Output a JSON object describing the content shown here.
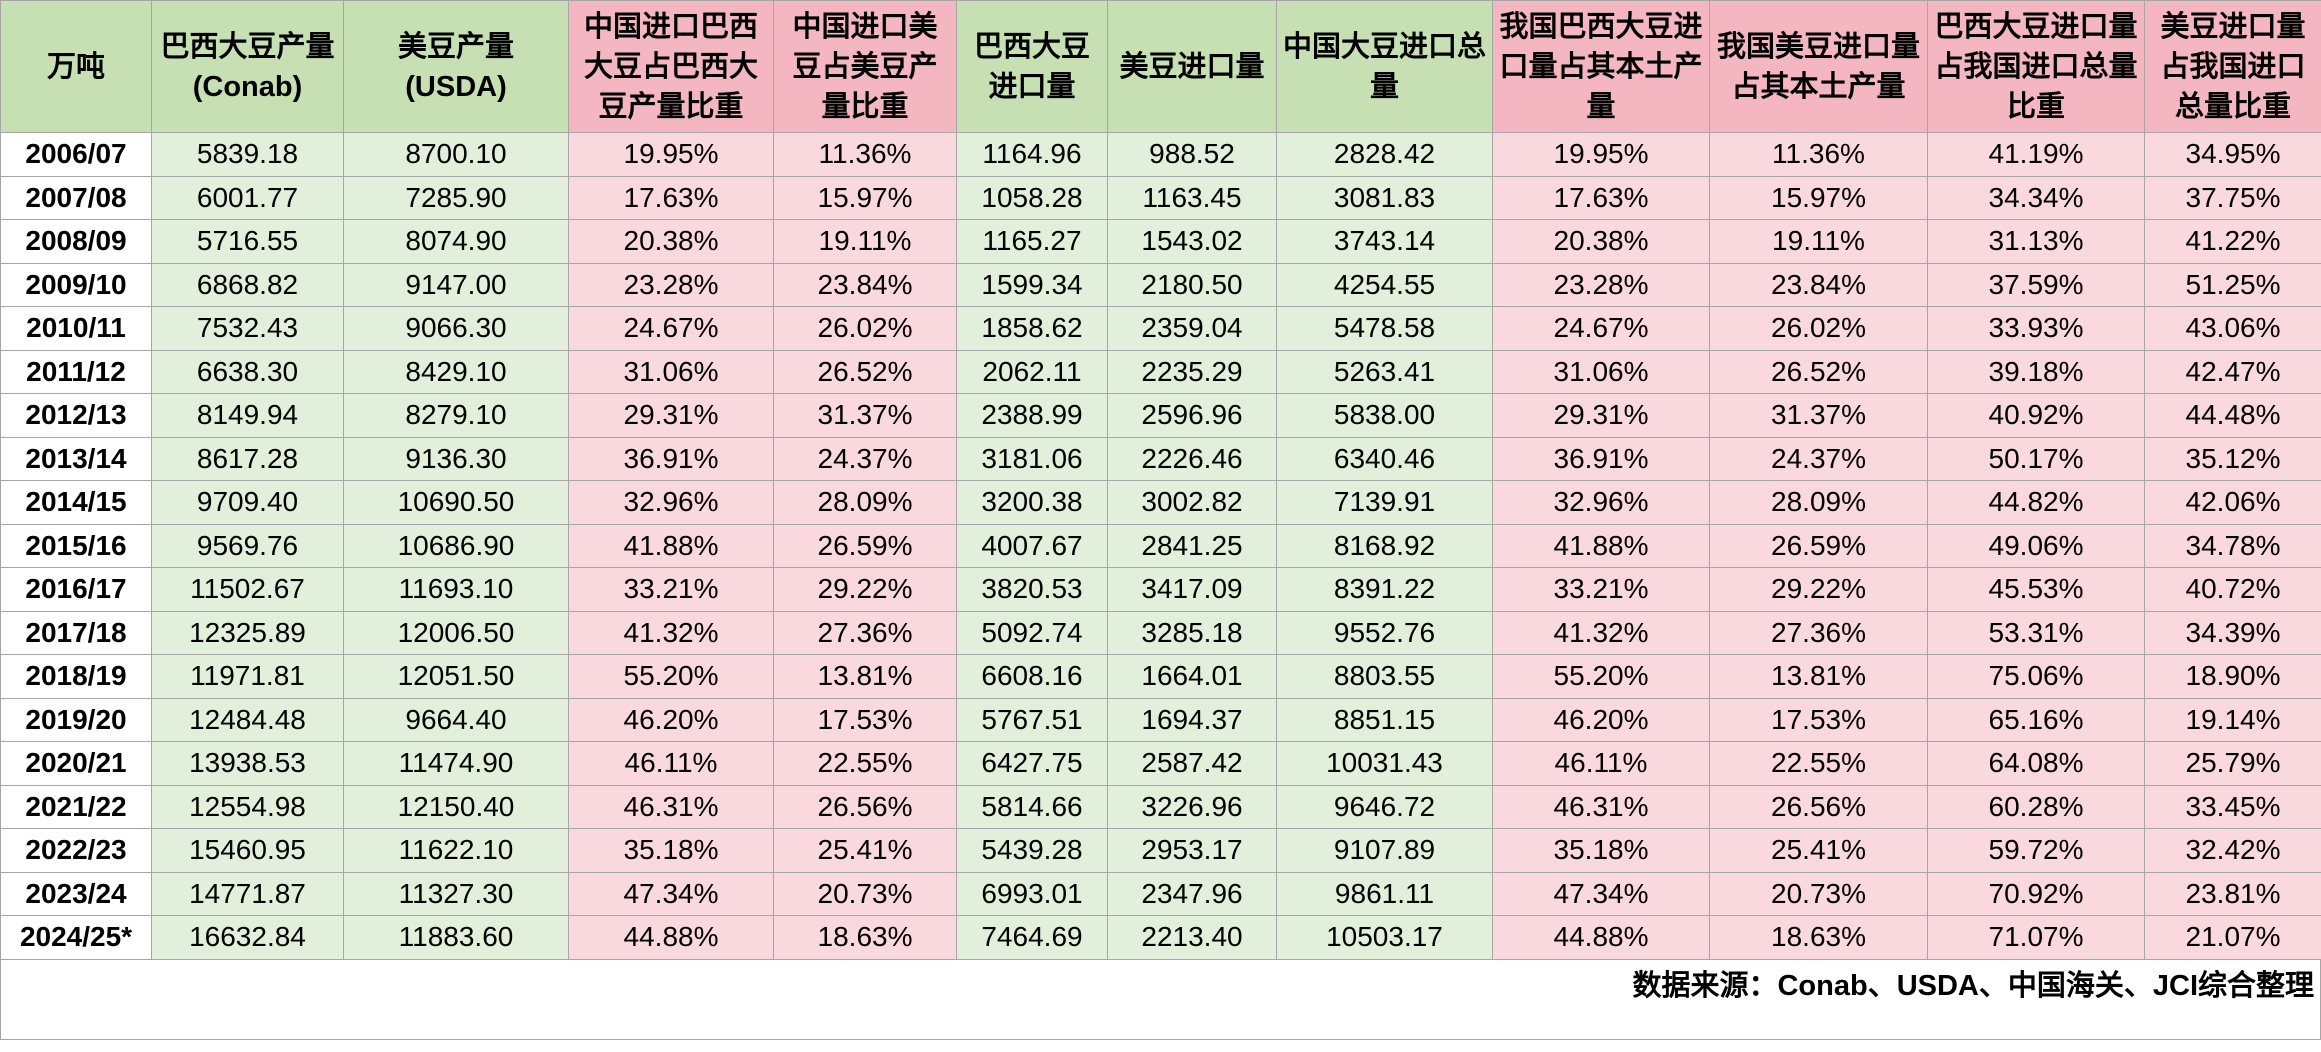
{
  "colors": {
    "header_green": "#c6e0b4",
    "header_pink": "#f4b6c0",
    "cell_green": "#e2efda",
    "cell_pink": "#fad9de"
  },
  "table": {
    "columns": [
      {
        "label": "万吨",
        "tone": "g"
      },
      {
        "label": "巴西大豆产量(Conab)",
        "tone": "g"
      },
      {
        "label": "美豆产量(USDA)",
        "tone": "g"
      },
      {
        "label": "中国进口巴西大豆占巴西大豆产量比重",
        "tone": "p"
      },
      {
        "label": "中国进口美豆占美豆产量比重",
        "tone": "p"
      },
      {
        "label": "巴西大豆进口量",
        "tone": "g"
      },
      {
        "label": "美豆进口量",
        "tone": "g"
      },
      {
        "label": "中国大豆进口总量",
        "tone": "g"
      },
      {
        "label": "我国巴西大豆进口量占其本土产量",
        "tone": "p"
      },
      {
        "label": "我国美豆进口量占其本土产量",
        "tone": "p"
      },
      {
        "label": "巴西大豆进口量占我国进口总量比重",
        "tone": "p"
      },
      {
        "label": "美豆进口量占我国进口总量比重",
        "tone": "p"
      }
    ],
    "rows": [
      [
        "2006/07",
        "5839.18",
        "8700.10",
        "19.95%",
        "11.36%",
        "1164.96",
        "988.52",
        "2828.42",
        "19.95%",
        "11.36%",
        "41.19%",
        "34.95%"
      ],
      [
        "2007/08",
        "6001.77",
        "7285.90",
        "17.63%",
        "15.97%",
        "1058.28",
        "1163.45",
        "3081.83",
        "17.63%",
        "15.97%",
        "34.34%",
        "37.75%"
      ],
      [
        "2008/09",
        "5716.55",
        "8074.90",
        "20.38%",
        "19.11%",
        "1165.27",
        "1543.02",
        "3743.14",
        "20.38%",
        "19.11%",
        "31.13%",
        "41.22%"
      ],
      [
        "2009/10",
        "6868.82",
        "9147.00",
        "23.28%",
        "23.84%",
        "1599.34",
        "2180.50",
        "4254.55",
        "23.28%",
        "23.84%",
        "37.59%",
        "51.25%"
      ],
      [
        "2010/11",
        "7532.43",
        "9066.30",
        "24.67%",
        "26.02%",
        "1858.62",
        "2359.04",
        "5478.58",
        "24.67%",
        "26.02%",
        "33.93%",
        "43.06%"
      ],
      [
        "2011/12",
        "6638.30",
        "8429.10",
        "31.06%",
        "26.52%",
        "2062.11",
        "2235.29",
        "5263.41",
        "31.06%",
        "26.52%",
        "39.18%",
        "42.47%"
      ],
      [
        "2012/13",
        "8149.94",
        "8279.10",
        "29.31%",
        "31.37%",
        "2388.99",
        "2596.96",
        "5838.00",
        "29.31%",
        "31.37%",
        "40.92%",
        "44.48%"
      ],
      [
        "2013/14",
        "8617.28",
        "9136.30",
        "36.91%",
        "24.37%",
        "3181.06",
        "2226.46",
        "6340.46",
        "36.91%",
        "24.37%",
        "50.17%",
        "35.12%"
      ],
      [
        "2014/15",
        "9709.40",
        "10690.50",
        "32.96%",
        "28.09%",
        "3200.38",
        "3002.82",
        "7139.91",
        "32.96%",
        "28.09%",
        "44.82%",
        "42.06%"
      ],
      [
        "2015/16",
        "9569.76",
        "10686.90",
        "41.88%",
        "26.59%",
        "4007.67",
        "2841.25",
        "8168.92",
        "41.88%",
        "26.59%",
        "49.06%",
        "34.78%"
      ],
      [
        "2016/17",
        "11502.67",
        "11693.10",
        "33.21%",
        "29.22%",
        "3820.53",
        "3417.09",
        "8391.22",
        "33.21%",
        "29.22%",
        "45.53%",
        "40.72%"
      ],
      [
        "2017/18",
        "12325.89",
        "12006.50",
        "41.32%",
        "27.36%",
        "5092.74",
        "3285.18",
        "9552.76",
        "41.32%",
        "27.36%",
        "53.31%",
        "34.39%"
      ],
      [
        "2018/19",
        "11971.81",
        "12051.50",
        "55.20%",
        "13.81%",
        "6608.16",
        "1664.01",
        "8803.55",
        "55.20%",
        "13.81%",
        "75.06%",
        "18.90%"
      ],
      [
        "2019/20",
        "12484.48",
        "9664.40",
        "46.20%",
        "17.53%",
        "5767.51",
        "1694.37",
        "8851.15",
        "46.20%",
        "17.53%",
        "65.16%",
        "19.14%"
      ],
      [
        "2020/21",
        "13938.53",
        "11474.90",
        "46.11%",
        "22.55%",
        "6427.75",
        "2587.42",
        "10031.43",
        "46.11%",
        "22.55%",
        "64.08%",
        "25.79%"
      ],
      [
        "2021/22",
        "12554.98",
        "12150.40",
        "46.31%",
        "26.56%",
        "5814.66",
        "3226.96",
        "9646.72",
        "46.31%",
        "26.56%",
        "60.28%",
        "33.45%"
      ],
      [
        "2022/23",
        "15460.95",
        "11622.10",
        "35.18%",
        "25.41%",
        "5439.28",
        "2953.17",
        "9107.89",
        "35.18%",
        "25.41%",
        "59.72%",
        "32.42%"
      ],
      [
        "2023/24",
        "14771.87",
        "11327.30",
        "47.34%",
        "20.73%",
        "6993.01",
        "2347.96",
        "9861.11",
        "47.34%",
        "20.73%",
        "70.92%",
        "23.81%"
      ],
      [
        "2024/25*",
        "16632.84",
        "11883.60",
        "44.88%",
        "18.63%",
        "7464.69",
        "2213.40",
        "10503.17",
        "44.88%",
        "18.63%",
        "71.07%",
        "21.07%"
      ]
    ]
  },
  "footer": {
    "source": "数据来源：Conab、USDA、中国海关、JCI综合整理"
  }
}
